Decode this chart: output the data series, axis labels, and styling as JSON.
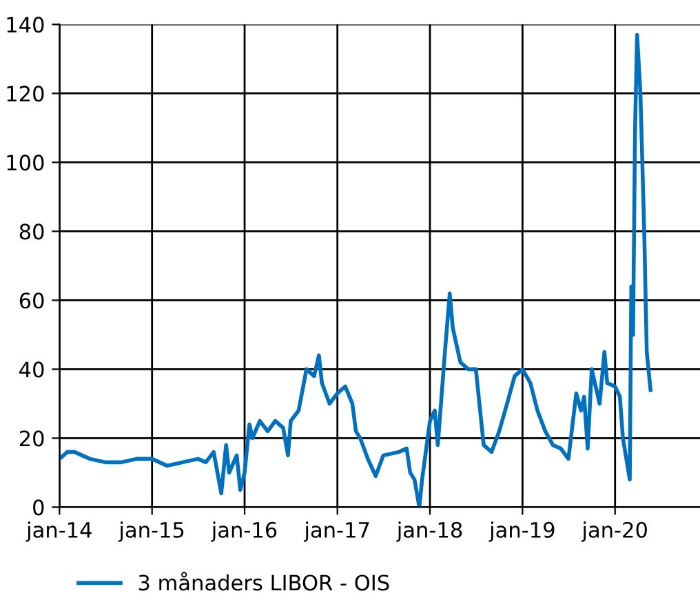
{
  "chart_data": {
    "type": "line",
    "xlim": [
      "2014-01-01",
      "2020-12-01"
    ],
    "ylim": [
      0,
      140
    ],
    "yticks": [
      0,
      20,
      40,
      60,
      80,
      100,
      120,
      140
    ],
    "xticks": [
      {
        "value": "2014-01-01",
        "label": "jan-14"
      },
      {
        "value": "2015-01-01",
        "label": "jan-15"
      },
      {
        "value": "2016-01-01",
        "label": "jan-16"
      },
      {
        "value": "2017-01-01",
        "label": "jan-17"
      },
      {
        "value": "2018-01-01",
        "label": "jan-18"
      },
      {
        "value": "2019-01-01",
        "label": "jan-19"
      },
      {
        "value": "2020-01-01",
        "label": "jan-20"
      }
    ],
    "grid": true,
    "legend": "bottom",
    "marker": "none",
    "line_style": "solid",
    "x": [
      "2014-01-01",
      "2014-02-01",
      "2014-03-01",
      "2014-05-01",
      "2014-07-01",
      "2014-09-01",
      "2014-11-01",
      "2015-01-01",
      "2015-03-01",
      "2015-05-01",
      "2015-07-01",
      "2015-08-01",
      "2015-09-01",
      "2015-10-01",
      "2015-10-20",
      "2015-11-01",
      "2015-12-01",
      "2015-12-15",
      "2016-01-01",
      "2016-01-20",
      "2016-02-01",
      "2016-03-01",
      "2016-04-01",
      "2016-05-01",
      "2016-06-01",
      "2016-06-20",
      "2016-07-01",
      "2016-08-01",
      "2016-09-01",
      "2016-10-01",
      "2016-10-20",
      "2016-11-01",
      "2016-12-01",
      "2017-01-01",
      "2017-02-01",
      "2017-03-01",
      "2017-03-15",
      "2017-04-01",
      "2017-05-01",
      "2017-06-01",
      "2017-07-01",
      "2017-09-01",
      "2017-10-01",
      "2017-10-15",
      "2017-11-01",
      "2017-11-20",
      "2017-12-01",
      "2018-01-01",
      "2018-01-20",
      "2018-02-01",
      "2018-03-01",
      "2018-03-20",
      "2018-04-01",
      "2018-05-01",
      "2018-06-01",
      "2018-07-01",
      "2018-08-01",
      "2018-09-01",
      "2018-10-01",
      "2018-11-01",
      "2018-12-01",
      "2019-01-01",
      "2019-02-01",
      "2019-03-01",
      "2019-04-01",
      "2019-05-01",
      "2019-06-01",
      "2019-07-01",
      "2019-08-01",
      "2019-08-20",
      "2019-09-01",
      "2019-09-15",
      "2019-10-01",
      "2019-11-01",
      "2019-11-20",
      "2019-12-01",
      "2020-01-01",
      "2020-01-20",
      "2020-02-01",
      "2020-02-28",
      "2020-03-05",
      "2020-03-12",
      "2020-03-20",
      "2020-03-28",
      "2020-04-10",
      "2020-04-25",
      "2020-05-05",
      "2020-05-20"
    ],
    "series": [
      {
        "name": "3 månaders LIBOR - OIS",
        "color": "#0070c0",
        "values": [
          14,
          16,
          16,
          14,
          13,
          13,
          14,
          14,
          12,
          13,
          14,
          13,
          16,
          4,
          18,
          10,
          15,
          5,
          10,
          24,
          20,
          25,
          22,
          25,
          23,
          15,
          25,
          28,
          40,
          38,
          44,
          36,
          30,
          33,
          35,
          30,
          22,
          20,
          14,
          9,
          15,
          16,
          17,
          10,
          8,
          0,
          8,
          25,
          28,
          18,
          45,
          62,
          52,
          42,
          40,
          40,
          18,
          16,
          22,
          30,
          38,
          40,
          36,
          28,
          22,
          18,
          17,
          14,
          33,
          28,
          32,
          17,
          40,
          30,
          45,
          36,
          35,
          32,
          20,
          8,
          64,
          50,
          110,
          137,
          120,
          80,
          45,
          34
        ]
      }
    ]
  }
}
